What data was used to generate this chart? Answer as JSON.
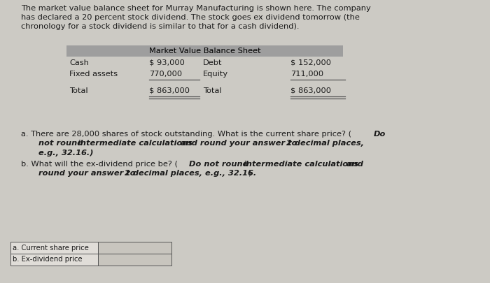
{
  "bg_color": "#cccac4",
  "intro_text_line1": "The market value balance sheet for Murray Manufacturing is shown here. The company",
  "intro_text_line2": "has declared a 20 percent stock dividend. The stock goes ex dividend tomorrow (the",
  "intro_text_line3": "chronology for a stock dividend is similar to that for a cash dividend).",
  "table_header": "Market Value Balance Sheet",
  "table_header_bg": "#9e9e9e",
  "table_bg": "#cccac4",
  "cash_label": "Cash",
  "cash_value": "$ 93,000",
  "debt_label": "Debt",
  "debt_value": "$ 152,000",
  "fixed_label": "Fixed assets",
  "fixed_value": "770,000",
  "equity_label": "Equity",
  "equity_value": "711,000",
  "total_label": "Total",
  "total_value": "$ 863,000",
  "total_right_value": "$ 863,000",
  "q_a_start": "a. There are 28,000 shares of stock outstanding. What is the current share price? (",
  "q_a_bold": "Do\n   not round intermediate calculations and round your answer to 2 decimal places,\n   e.g., 32.16.",
  "q_a_end": ")",
  "q_b_start": "b. What will the ex-dividend price be? (",
  "q_b_bold": "Do not round intermediate calculations and\n   round your answer to 2 decimal places, e.g., 32.16.",
  "q_b_end": ")",
  "answer_label_a": "a. Current share price",
  "answer_label_b": "b. Ex-dividend price",
  "text_color": "#1a1a1a",
  "line_color": "#555555",
  "answer_box_fill": "#c8c5be",
  "answer_label_fill": "#e0ddd8"
}
